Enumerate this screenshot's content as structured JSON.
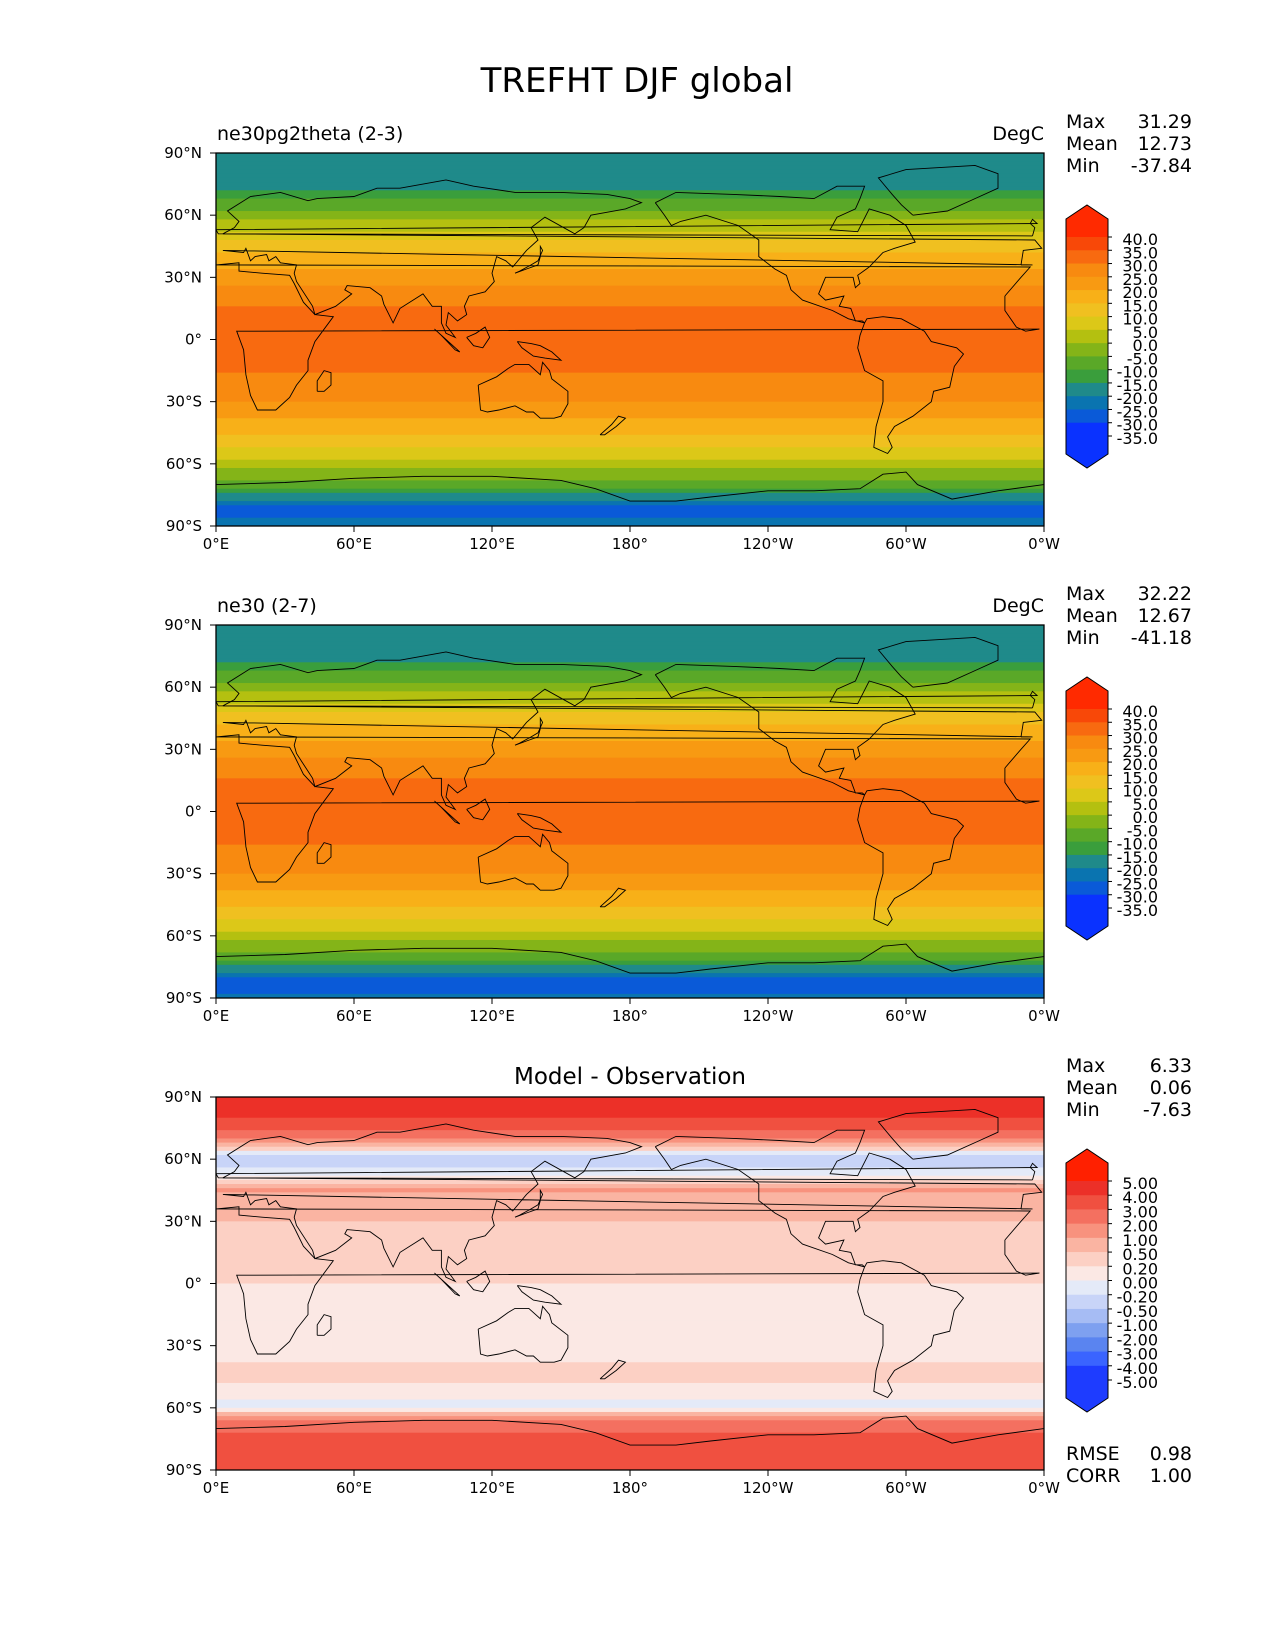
{
  "figure_title": "TREFHT DJF global",
  "colors": {
    "land_outline": "#000000",
    "abs_palette": [
      "#0a32ff",
      "#0a5ad8",
      "#0a74b0",
      "#1f8a8a",
      "#3a9e3c",
      "#5aa828",
      "#84b418",
      "#b4c010",
      "#dcc818",
      "#f0c020",
      "#f8b018",
      "#f89a12",
      "#f88a10",
      "#f86a10",
      "#f84808",
      "#ff2a00"
    ],
    "diff_palette": [
      "#1e3cff",
      "#3a64ff",
      "#5a84f0",
      "#7ea0f0",
      "#a6bcf4",
      "#c8d4f8",
      "#e4eaf8",
      "#fbe8e4",
      "#fcd0c4",
      "#fab4a2",
      "#f8927e",
      "#f47060",
      "#f05040",
      "#ec3028",
      "#ff2000"
    ]
  },
  "chart_data": [
    {
      "type": "heatmap",
      "title": "ne30pg2theta (2-3)",
      "units": "DegC",
      "stats": {
        "max_label": "Max",
        "max": "31.29",
        "mean_label": "Mean",
        "mean": "12.73",
        "min_label": "Min",
        "min": "-37.84"
      },
      "xticks": [
        "0°E",
        "60°E",
        "120°E",
        "180°",
        "120°W",
        "60°W",
        "0°W"
      ],
      "yticks": [
        "90°N",
        "60°N",
        "30°N",
        "0°",
        "30°S",
        "60°S",
        "90°S"
      ],
      "xlim": [
        0,
        360
      ],
      "ylim": [
        -90,
        90
      ],
      "colorbar": {
        "extend": "both",
        "labels": [
          "40.0",
          "35.0",
          "30.0",
          "25.0",
          "20.0",
          "15.0",
          "10.0",
          "5.0",
          "0.0",
          "-5.0",
          "-10.0",
          "-15.0",
          "-20.0",
          "-25.0",
          "-30.0",
          "-35.0"
        ]
      },
      "field_profile": [
        {
          "lat": 90,
          "value": -25
        },
        {
          "lat": 75,
          "value": -22
        },
        {
          "lat": 60,
          "value": -8
        },
        {
          "lat": 45,
          "value": 8
        },
        {
          "lat": 30,
          "value": 18
        },
        {
          "lat": 15,
          "value": 25
        },
        {
          "lat": 0,
          "value": 27
        },
        {
          "lat": -15,
          "value": 25
        },
        {
          "lat": -30,
          "value": 20
        },
        {
          "lat": -45,
          "value": 10
        },
        {
          "lat": -60,
          "value": -2
        },
        {
          "lat": -72,
          "value": -15
        },
        {
          "lat": -82,
          "value": -32
        },
        {
          "lat": -90,
          "value": -28
        }
      ]
    },
    {
      "type": "heatmap",
      "title": "ne30 (2-7)",
      "units": "DegC",
      "stats": {
        "max_label": "Max",
        "max": "32.22",
        "mean_label": "Mean",
        "mean": "12.67",
        "min_label": "Min",
        "min": "-41.18"
      },
      "xticks": [
        "0°E",
        "60°E",
        "120°E",
        "180°",
        "120°W",
        "60°W",
        "0°W"
      ],
      "yticks": [
        "90°N",
        "60°N",
        "30°N",
        "0°",
        "30°S",
        "60°S",
        "90°S"
      ],
      "xlim": [
        0,
        360
      ],
      "ylim": [
        -90,
        90
      ],
      "colorbar": {
        "extend": "both",
        "labels": [
          "40.0",
          "35.0",
          "30.0",
          "25.0",
          "20.0",
          "15.0",
          "10.0",
          "5.0",
          "0.0",
          "-5.0",
          "-10.0",
          "-15.0",
          "-20.0",
          "-25.0",
          "-30.0",
          "-35.0"
        ]
      },
      "field_profile": [
        {
          "lat": 90,
          "value": -25
        },
        {
          "lat": 75,
          "value": -22
        },
        {
          "lat": 60,
          "value": -8
        },
        {
          "lat": 45,
          "value": 8
        },
        {
          "lat": 30,
          "value": 18
        },
        {
          "lat": 15,
          "value": 25
        },
        {
          "lat": 0,
          "value": 27
        },
        {
          "lat": -15,
          "value": 25
        },
        {
          "lat": -30,
          "value": 20
        },
        {
          "lat": -45,
          "value": 10
        },
        {
          "lat": -60,
          "value": -2
        },
        {
          "lat": -72,
          "value": -15
        },
        {
          "lat": -82,
          "value": -34
        },
        {
          "lat": -90,
          "value": -28
        }
      ]
    },
    {
      "type": "heatmap",
      "title": "Model - Observation",
      "units": "",
      "stats": {
        "max_label": "Max",
        "max": "6.33",
        "mean_label": "Mean",
        "mean": "0.06",
        "min_label": "Min",
        "min": "-7.63"
      },
      "extra_stats": {
        "rmse_label": "RMSE",
        "rmse": "0.98",
        "corr_label": "CORR",
        "corr": "1.00"
      },
      "xticks": [
        "0°E",
        "60°E",
        "120°E",
        "180°",
        "120°W",
        "60°W",
        "0°W"
      ],
      "yticks": [
        "90°N",
        "60°N",
        "30°N",
        "0°",
        "30°S",
        "60°S",
        "90°S"
      ],
      "xlim": [
        0,
        360
      ],
      "ylim": [
        -90,
        90
      ],
      "colorbar": {
        "extend": "both",
        "labels": [
          "5.00",
          "4.00",
          "3.00",
          "2.00",
          "1.00",
          "0.50",
          "0.20",
          "0.00",
          "-0.20",
          "-0.50",
          "-1.00",
          "-2.00",
          "-3.00",
          "-4.00",
          "-5.00"
        ]
      },
      "field_profile": [
        {
          "lat": 90,
          "value": 4
        },
        {
          "lat": 80,
          "value": 3
        },
        {
          "lat": 70,
          "value": 1
        },
        {
          "lat": 60,
          "value": -1
        },
        {
          "lat": 45,
          "value": 0.5
        },
        {
          "lat": 30,
          "value": 0.2
        },
        {
          "lat": 15,
          "value": 0
        },
        {
          "lat": 0,
          "value": 0
        },
        {
          "lat": -15,
          "value": -0.2
        },
        {
          "lat": -30,
          "value": -0.1
        },
        {
          "lat": -45,
          "value": 0.1
        },
        {
          "lat": -60,
          "value": -0.3
        },
        {
          "lat": -72,
          "value": 2
        },
        {
          "lat": -90,
          "value": 3
        }
      ]
    }
  ]
}
